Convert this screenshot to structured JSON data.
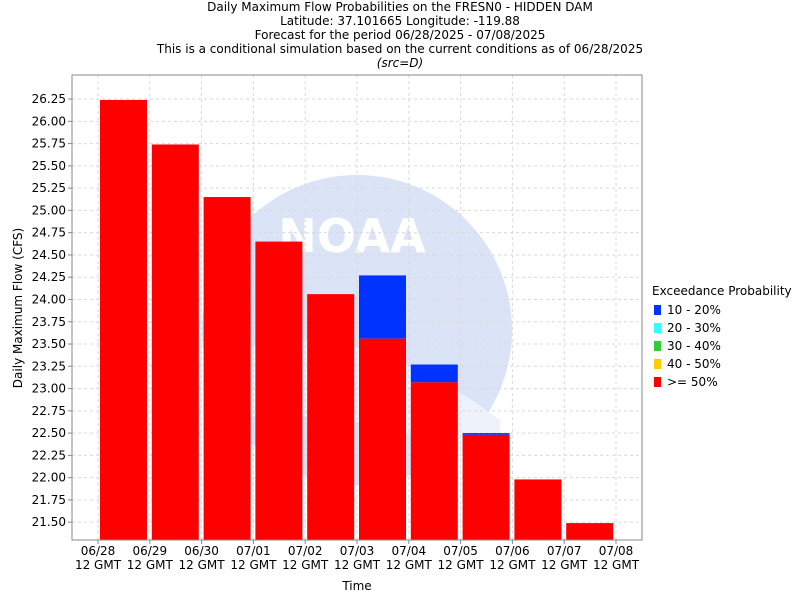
{
  "titles": {
    "line1": "Daily Maximum Flow Probabilities on the FRESN0 - HIDDEN DAM",
    "line2": "Latitude: 37.101665 Longitude: -119.88",
    "line3": "Forecast for the period 06/28/2025 - 07/08/2025",
    "line4": "This is a conditional simulation based on the current conditions as of 06/28/2025",
    "line5": "(src=D)"
  },
  "legend": {
    "title": "Exceedance Probability",
    "items": [
      {
        "label": "10 - 20%",
        "color": "#0033ff"
      },
      {
        "label": "20 - 30%",
        "color": "#33ffff"
      },
      {
        "label": "30 - 40%",
        "color": "#33cc33"
      },
      {
        "label": "40 - 50%",
        "color": "#ffcc00"
      },
      {
        "label": ">= 50%",
        "color": "#ff0000"
      }
    ]
  },
  "chart_data": {
    "type": "bar",
    "title": "Daily Maximum Flow Probabilities on the FRESN0 - HIDDEN DAM",
    "xlabel": "Time",
    "ylabel": "Daily Maximum Flow (CFS)",
    "ylim": [
      21.3,
      26.52
    ],
    "yticks": [
      21.5,
      21.75,
      22.0,
      22.25,
      22.5,
      22.75,
      23.0,
      23.25,
      23.5,
      23.75,
      24.0,
      24.25,
      24.5,
      24.75,
      25.0,
      25.25,
      25.5,
      25.75,
      26.0,
      26.25
    ],
    "xticks": [
      {
        "date": "06/28",
        "sub": "12 GMT"
      },
      {
        "date": "06/29",
        "sub": "12 GMT"
      },
      {
        "date": "06/30",
        "sub": "12 GMT"
      },
      {
        "date": "07/01",
        "sub": "12 GMT"
      },
      {
        "date": "07/02",
        "sub": "12 GMT"
      },
      {
        "date": "07/03",
        "sub": "12 GMT"
      },
      {
        "date": "07/04",
        "sub": "12 GMT"
      },
      {
        "date": "07/05",
        "sub": "12 GMT"
      },
      {
        "date": "07/06",
        "sub": "12 GMT"
      },
      {
        "date": "07/07",
        "sub": "12 GMT"
      },
      {
        "date": "07/08",
        "sub": "12 GMT"
      }
    ],
    "grid": true,
    "legend_position": "right",
    "categories": [
      "06/28",
      "06/29",
      "06/30",
      "07/01",
      "07/02",
      "07/03",
      "07/04",
      "07/05",
      "07/06",
      "07/07"
    ],
    "series": [
      {
        "name": ">= 50%",
        "color": "#ff0000",
        "values": [
          26.24,
          25.74,
          25.15,
          24.65,
          24.06,
          23.56,
          23.07,
          22.48,
          21.98,
          21.49
        ]
      },
      {
        "name": "10 - 20%",
        "color": "#0033ff",
        "values": [
          26.24,
          25.74,
          25.15,
          24.65,
          24.06,
          24.27,
          23.27,
          22.5,
          21.98,
          21.49
        ]
      }
    ]
  }
}
